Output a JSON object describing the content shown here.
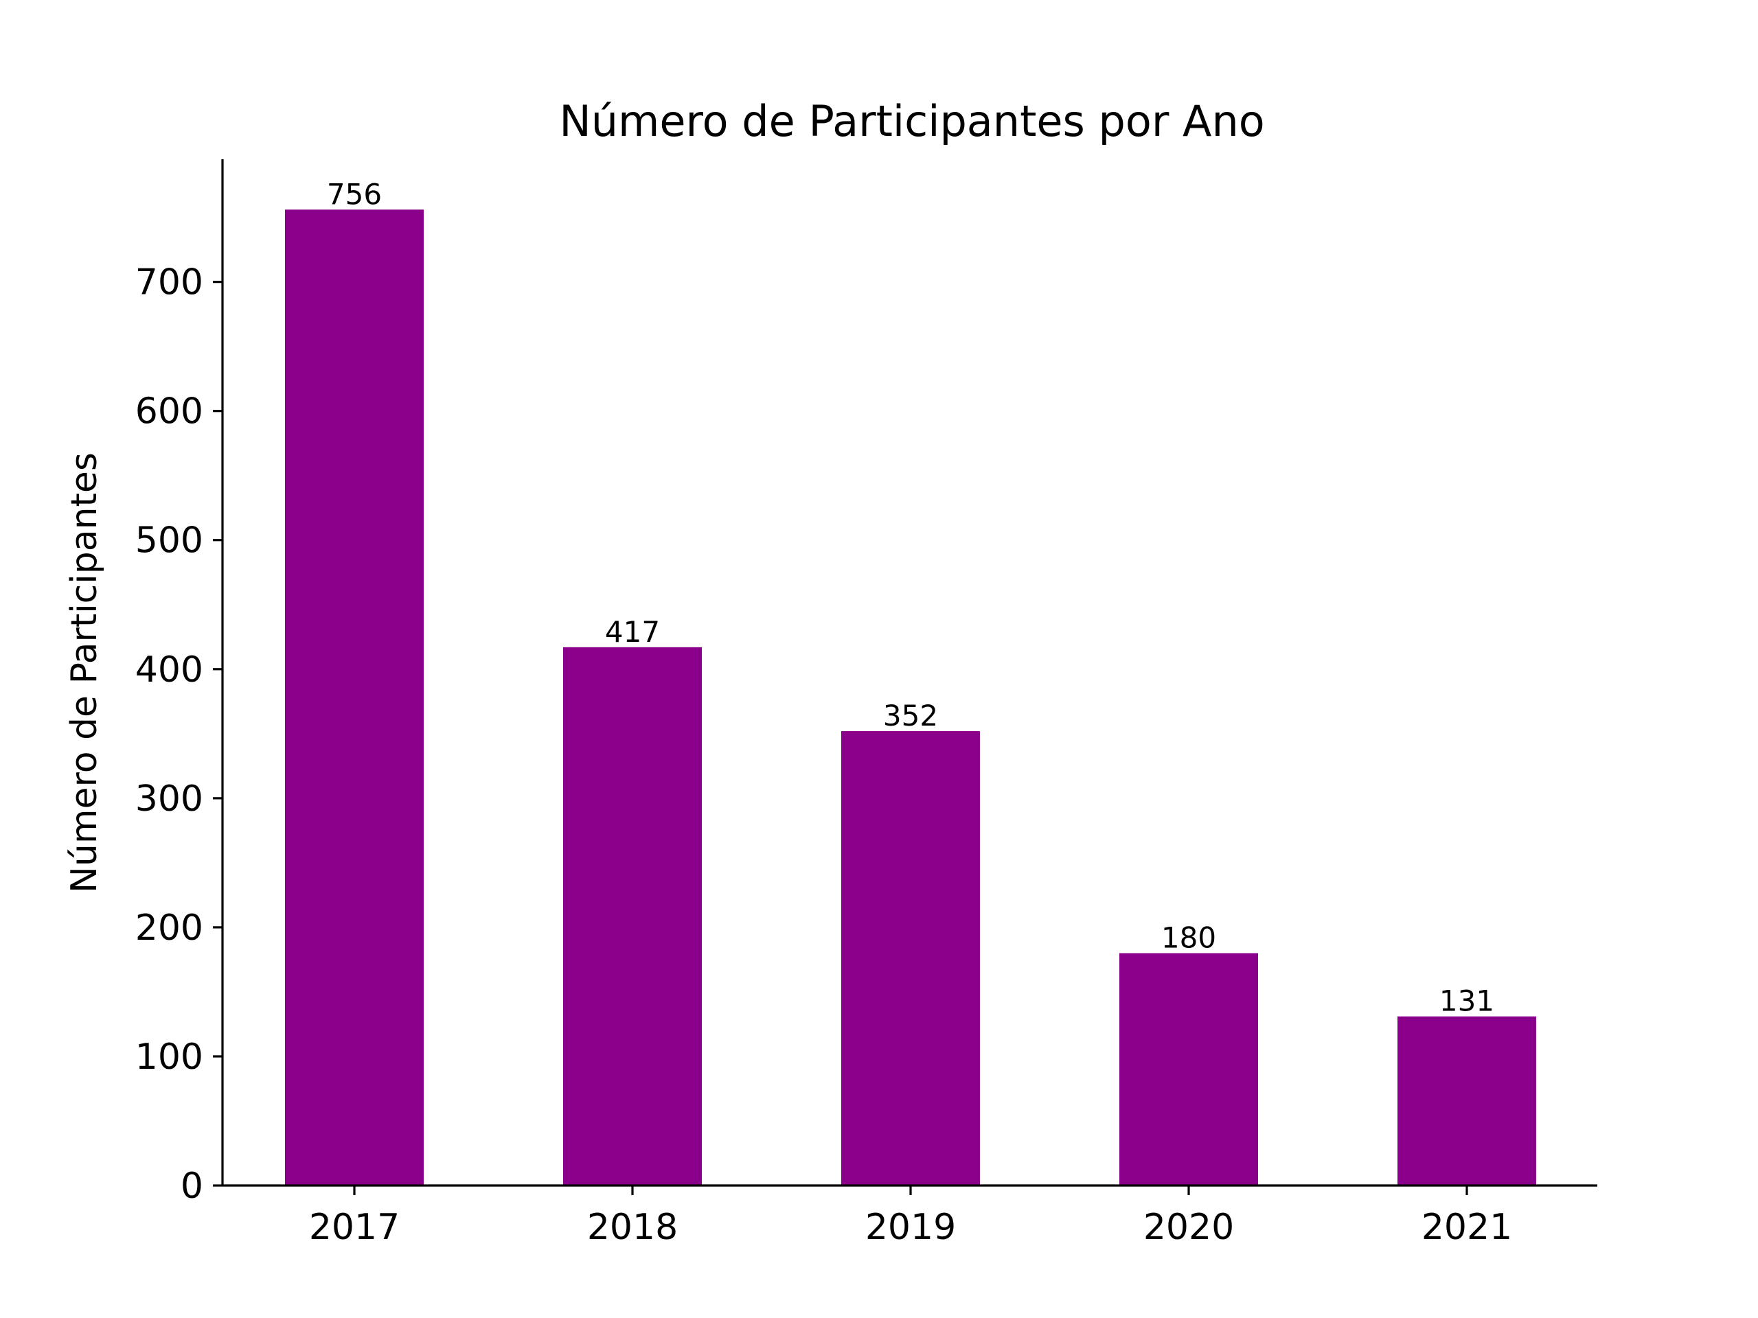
{
  "chart_data": {
    "type": "bar",
    "title": "Número de Participantes por Ano",
    "xlabel": "",
    "ylabel": "Número de Participantes",
    "categories": [
      "2017",
      "2018",
      "2019",
      "2020",
      "2021"
    ],
    "values": [
      756,
      417,
      352,
      180,
      131
    ],
    "data_labels": [
      "756",
      "417",
      "352",
      "180",
      "131"
    ],
    "ylim": [
      0,
      795
    ],
    "yticks": [
      0,
      100,
      200,
      300,
      400,
      500,
      600,
      700
    ],
    "ytick_labels": [
      "0",
      "100",
      "200",
      "300",
      "400",
      "500",
      "600",
      "700"
    ],
    "bar_color": "#8B008B",
    "grid": false,
    "legend": "none"
  }
}
